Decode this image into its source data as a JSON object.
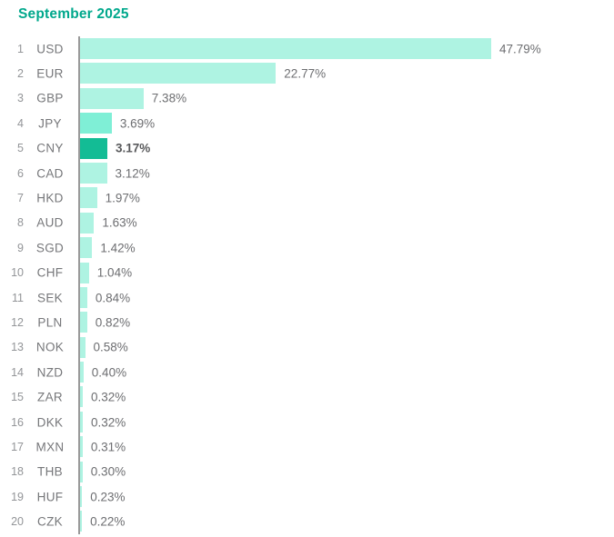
{
  "title": "September 2025",
  "colors": {
    "title": "#00a88c",
    "bar_default": "#aef3e2",
    "bar_medium": "#7fefd6",
    "bar_highlight": "#13bc95",
    "axis_line": "#9a9a9a",
    "rank_text": "#939598",
    "code_text": "#76777a",
    "value_text": "#6d6e71",
    "value_text_highlight": "#58595b"
  },
  "chart_data": {
    "type": "bar",
    "orientation": "horizontal",
    "title": "September 2025",
    "xlabel": "",
    "ylabel": "",
    "xlim": [
      0,
      50
    ],
    "grid": false,
    "legend": false,
    "highlighted_category": "CNY",
    "categories": [
      "USD",
      "EUR",
      "GBP",
      "JPY",
      "CNY",
      "CAD",
      "HKD",
      "AUD",
      "SGD",
      "CHF",
      "SEK",
      "PLN",
      "NOK",
      "NZD",
      "ZAR",
      "DKK",
      "MXN",
      "THB",
      "HUF",
      "CZK"
    ],
    "values": [
      47.79,
      22.77,
      7.38,
      3.69,
      3.17,
      3.12,
      1.97,
      1.63,
      1.42,
      1.04,
      0.84,
      0.82,
      0.58,
      0.4,
      0.32,
      0.32,
      0.31,
      0.3,
      0.23,
      0.22
    ],
    "items": [
      {
        "rank": "1",
        "code": "USD",
        "value": 47.79,
        "label": "47.79%",
        "style": "default"
      },
      {
        "rank": "2",
        "code": "EUR",
        "value": 22.77,
        "label": "22.77%",
        "style": "default"
      },
      {
        "rank": "3",
        "code": "GBP",
        "value": 7.38,
        "label": "7.38%",
        "style": "default"
      },
      {
        "rank": "4",
        "code": "JPY",
        "value": 3.69,
        "label": "3.69%",
        "style": "medium"
      },
      {
        "rank": "5",
        "code": "CNY",
        "value": 3.17,
        "label": "3.17%",
        "style": "highlight"
      },
      {
        "rank": "6",
        "code": "CAD",
        "value": 3.12,
        "label": "3.12%",
        "style": "default"
      },
      {
        "rank": "7",
        "code": "HKD",
        "value": 1.97,
        "label": "1.97%",
        "style": "default"
      },
      {
        "rank": "8",
        "code": "AUD",
        "value": 1.63,
        "label": "1.63%",
        "style": "default"
      },
      {
        "rank": "9",
        "code": "SGD",
        "value": 1.42,
        "label": "1.42%",
        "style": "default"
      },
      {
        "rank": "10",
        "code": "CHF",
        "value": 1.04,
        "label": "1.04%",
        "style": "default"
      },
      {
        "rank": "11",
        "code": "SEK",
        "value": 0.84,
        "label": "0.84%",
        "style": "default"
      },
      {
        "rank": "12",
        "code": "PLN",
        "value": 0.82,
        "label": "0.82%",
        "style": "default"
      },
      {
        "rank": "13",
        "code": "NOK",
        "value": 0.58,
        "label": "0.58%",
        "style": "default"
      },
      {
        "rank": "14",
        "code": "NZD",
        "value": 0.4,
        "label": "0.40%",
        "style": "default"
      },
      {
        "rank": "15",
        "code": "ZAR",
        "value": 0.32,
        "label": "0.32%",
        "style": "default"
      },
      {
        "rank": "16",
        "code": "DKK",
        "value": 0.32,
        "label": "0.32%",
        "style": "default"
      },
      {
        "rank": "17",
        "code": "MXN",
        "value": 0.31,
        "label": "0.31%",
        "style": "default"
      },
      {
        "rank": "18",
        "code": "THB",
        "value": 0.3,
        "label": "0.30%",
        "style": "default"
      },
      {
        "rank": "19",
        "code": "HUF",
        "value": 0.23,
        "label": "0.23%",
        "style": "default"
      },
      {
        "rank": "20",
        "code": "CZK",
        "value": 0.22,
        "label": "0.22%",
        "style": "default"
      }
    ]
  }
}
